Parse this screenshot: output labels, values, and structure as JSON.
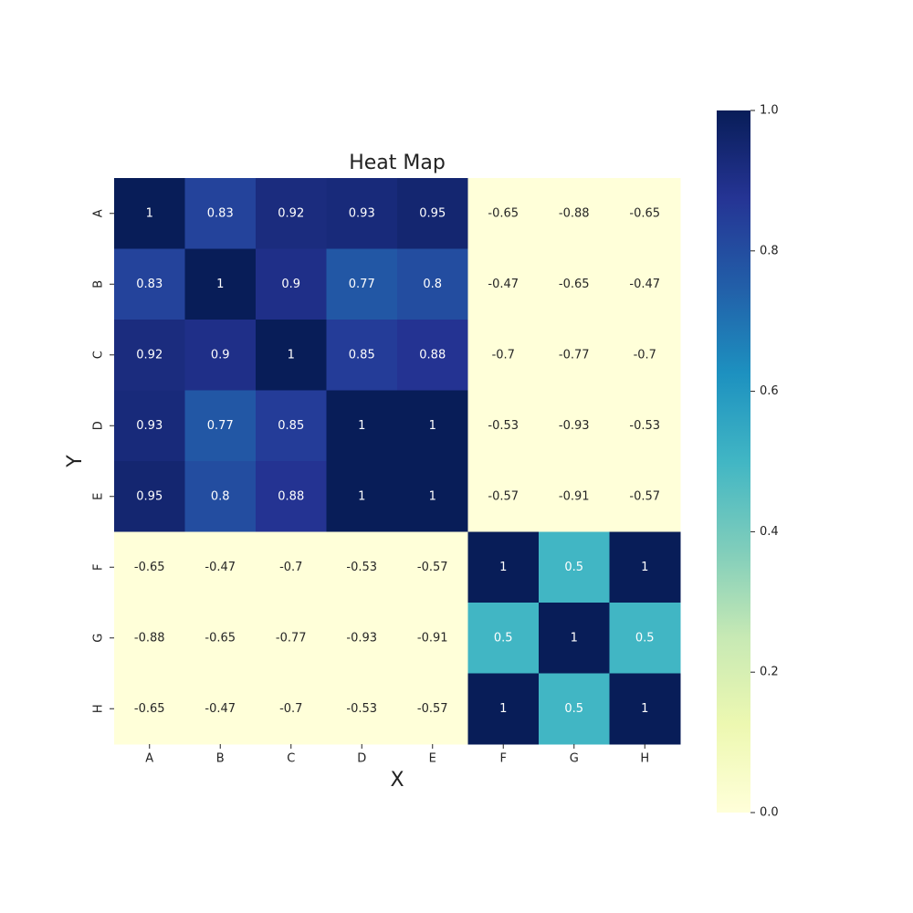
{
  "chart_data": {
    "type": "heatmap",
    "title": "Heat Map",
    "x_label": "X",
    "y_label": "Y",
    "x_categories": [
      "A",
      "B",
      "C",
      "D",
      "E",
      "F",
      "G",
      "H"
    ],
    "y_categories": [
      "A",
      "B",
      "C",
      "D",
      "E",
      "F",
      "G",
      "H"
    ],
    "values": [
      [
        1,
        0.83,
        0.92,
        0.93,
        0.95,
        -0.65,
        -0.88,
        -0.65
      ],
      [
        0.83,
        1,
        0.9,
        0.77,
        0.8,
        -0.47,
        -0.65,
        -0.47
      ],
      [
        0.92,
        0.9,
        1,
        0.85,
        0.88,
        -0.7,
        -0.77,
        -0.7
      ],
      [
        0.93,
        0.77,
        0.85,
        1,
        1,
        -0.53,
        -0.93,
        -0.53
      ],
      [
        0.95,
        0.8,
        0.88,
        1,
        1,
        -0.57,
        -0.91,
        -0.57
      ],
      [
        -0.65,
        -0.47,
        -0.7,
        -0.53,
        -0.57,
        1,
        0.5,
        1
      ],
      [
        -0.88,
        -0.65,
        -0.77,
        -0.93,
        -0.91,
        0.5,
        1,
        0.5
      ],
      [
        -0.65,
        -0.47,
        -0.7,
        -0.53,
        -0.57,
        1,
        0.5,
        1
      ]
    ],
    "colormap": [
      "#ffffd9",
      "#edf8b1",
      "#c7e9b4",
      "#7fcdbb",
      "#41b6c4",
      "#1d91c0",
      "#225ea8",
      "#253494",
      "#081d58"
    ],
    "clim": [
      0,
      1
    ],
    "cticks": [
      {
        "value": 0,
        "label": "0.0"
      },
      0.2,
      0.4,
      0.6,
      0.8,
      {
        "value": 1,
        "label": "1.0"
      }
    ]
  }
}
